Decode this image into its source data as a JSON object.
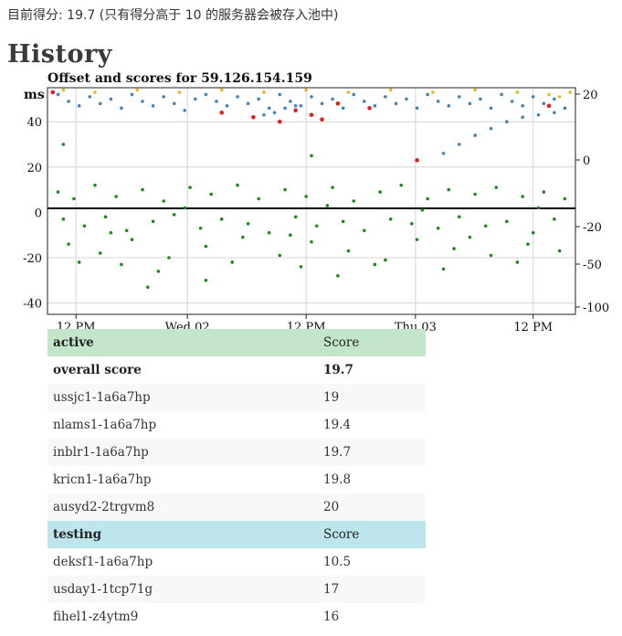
{
  "status_line": "目前得分: 19.7 (只有得分高于 10 的服务器会被存入池中)",
  "heading": "History",
  "chart_data": {
    "type": "scatter",
    "title": "Offset and scores for 59.126.154.159",
    "left_axis": {
      "unit_label": "ms",
      "ticks": [
        {
          "label": "40",
          "value": 40
        },
        {
          "label": "20",
          "value": 20
        },
        {
          "label": "0",
          "value": 0
        },
        {
          "label": "-20",
          "value": -20
        },
        {
          "label": "-40",
          "value": -40
        }
      ],
      "ylim": [
        -45,
        55
      ]
    },
    "right_axis": {
      "ticks": [
        {
          "label": "20",
          "value": 20
        },
        {
          "label": "0",
          "value": 0
        },
        {
          "label": "-20",
          "value": -20
        },
        {
          "label": "-50",
          "value": -50
        },
        {
          "label": "-100",
          "value": -100
        }
      ]
    },
    "x_axis": {
      "ticks": [
        "12 PM",
        "Wed 02",
        "12 PM",
        "Thu 03",
        "12 PM"
      ]
    },
    "series": [
      {
        "kind": "offset",
        "color": "#1e8a1e",
        "points": [
          [
            0.02,
            9
          ],
          [
            0.05,
            6
          ],
          [
            0.09,
            12
          ],
          [
            0.13,
            7
          ],
          [
            0.18,
            10
          ],
          [
            0.22,
            5
          ],
          [
            0.27,
            11
          ],
          [
            0.31,
            8
          ],
          [
            0.36,
            12
          ],
          [
            0.4,
            6
          ],
          [
            0.45,
            10
          ],
          [
            0.49,
            7
          ],
          [
            0.54,
            11
          ],
          [
            0.58,
            5
          ],
          [
            0.63,
            9
          ],
          [
            0.67,
            12
          ],
          [
            0.72,
            6
          ],
          [
            0.76,
            10
          ],
          [
            0.81,
            8
          ],
          [
            0.85,
            11
          ],
          [
            0.9,
            7
          ],
          [
            0.94,
            9
          ],
          [
            0.98,
            6
          ],
          [
            0.03,
            -3
          ],
          [
            0.07,
            -6
          ],
          [
            0.11,
            -2
          ],
          [
            0.15,
            -8
          ],
          [
            0.2,
            -4
          ],
          [
            0.24,
            -1
          ],
          [
            0.29,
            -7
          ],
          [
            0.33,
            -3
          ],
          [
            0.38,
            -5
          ],
          [
            0.42,
            -9
          ],
          [
            0.47,
            -2
          ],
          [
            0.51,
            -6
          ],
          [
            0.56,
            -4
          ],
          [
            0.6,
            -8
          ],
          [
            0.65,
            -3
          ],
          [
            0.69,
            -5
          ],
          [
            0.74,
            -7
          ],
          [
            0.78,
            -2
          ],
          [
            0.83,
            -6
          ],
          [
            0.87,
            -4
          ],
          [
            0.92,
            -9
          ],
          [
            0.96,
            -3
          ],
          [
            0.04,
            -14
          ],
          [
            0.1,
            -18
          ],
          [
            0.16,
            -12
          ],
          [
            0.23,
            -20
          ],
          [
            0.3,
            -15
          ],
          [
            0.37,
            -11
          ],
          [
            0.44,
            -19
          ],
          [
            0.5,
            -13
          ],
          [
            0.57,
            -17
          ],
          [
            0.64,
            -21
          ],
          [
            0.7,
            -12
          ],
          [
            0.77,
            -16
          ],
          [
            0.84,
            -19
          ],
          [
            0.91,
            -14
          ],
          [
            0.97,
            -17
          ],
          [
            0.06,
            -22
          ],
          [
            0.14,
            -23
          ],
          [
            0.21,
            -26
          ],
          [
            0.35,
            -22
          ],
          [
            0.48,
            -24
          ],
          [
            0.62,
            -23
          ],
          [
            0.75,
            -25
          ],
          [
            0.89,
            -22
          ],
          [
            0.26,
            2
          ],
          [
            0.53,
            3
          ],
          [
            0.71,
            1
          ],
          [
            0.93,
            2
          ],
          [
            0.12,
            -9
          ],
          [
            0.46,
            -10
          ],
          [
            0.8,
            -11
          ],
          [
            0.3,
            -30
          ],
          [
            0.55,
            -28
          ],
          [
            0.19,
            -33
          ],
          [
            0.03,
            30
          ],
          [
            0.5,
            25
          ]
        ]
      },
      {
        "kind": "score",
        "color": "#4682b4",
        "points": [
          [
            0.02,
            52
          ],
          [
            0.04,
            49
          ],
          [
            0.06,
            47
          ],
          [
            0.08,
            51
          ],
          [
            0.1,
            48
          ],
          [
            0.12,
            50
          ],
          [
            0.14,
            46
          ],
          [
            0.16,
            52
          ],
          [
            0.18,
            49
          ],
          [
            0.2,
            47
          ],
          [
            0.22,
            51
          ],
          [
            0.24,
            48
          ],
          [
            0.26,
            45
          ],
          [
            0.28,
            50
          ],
          [
            0.3,
            52
          ],
          [
            0.32,
            49
          ],
          [
            0.34,
            47
          ],
          [
            0.36,
            51
          ],
          [
            0.38,
            48
          ],
          [
            0.4,
            50
          ],
          [
            0.42,
            46
          ],
          [
            0.44,
            52
          ],
          [
            0.46,
            49
          ],
          [
            0.48,
            47
          ],
          [
            0.5,
            51
          ],
          [
            0.52,
            48
          ],
          [
            0.54,
            50
          ],
          [
            0.56,
            46
          ],
          [
            0.58,
            52
          ],
          [
            0.6,
            49
          ],
          [
            0.62,
            47
          ],
          [
            0.64,
            51
          ],
          [
            0.66,
            48
          ],
          [
            0.68,
            50
          ],
          [
            0.7,
            46
          ],
          [
            0.72,
            52
          ],
          [
            0.74,
            49
          ],
          [
            0.76,
            47
          ],
          [
            0.78,
            51
          ],
          [
            0.8,
            48
          ],
          [
            0.82,
            50
          ],
          [
            0.84,
            46
          ],
          [
            0.86,
            52
          ],
          [
            0.88,
            49
          ],
          [
            0.9,
            47
          ],
          [
            0.92,
            51
          ],
          [
            0.94,
            48
          ],
          [
            0.96,
            50
          ],
          [
            0.98,
            46
          ],
          [
            0.41,
            43
          ],
          [
            0.43,
            44
          ],
          [
            0.45,
            46
          ],
          [
            0.47,
            47
          ],
          [
            0.75,
            26
          ],
          [
            0.78,
            30
          ],
          [
            0.81,
            34
          ],
          [
            0.84,
            37
          ],
          [
            0.87,
            40
          ],
          [
            0.9,
            42
          ],
          [
            0.93,
            43
          ],
          [
            0.96,
            44
          ]
        ]
      },
      {
        "kind": "monitor",
        "color": "#e6b830",
        "points": [
          [
            0.03,
            54
          ],
          [
            0.09,
            53
          ],
          [
            0.17,
            54
          ],
          [
            0.25,
            53
          ],
          [
            0.33,
            54
          ],
          [
            0.41,
            53
          ],
          [
            0.49,
            54
          ],
          [
            0.57,
            53
          ],
          [
            0.65,
            54
          ],
          [
            0.73,
            53
          ],
          [
            0.81,
            54
          ],
          [
            0.89,
            53
          ],
          [
            0.95,
            52
          ],
          [
            0.97,
            51
          ],
          [
            0.99,
            53
          ]
        ]
      },
      {
        "kind": "error",
        "color": "#e02020",
        "points": [
          [
            0.01,
            53
          ],
          [
            0.33,
            44
          ],
          [
            0.39,
            42
          ],
          [
            0.44,
            40
          ],
          [
            0.47,
            45
          ],
          [
            0.5,
            43
          ],
          [
            0.52,
            41
          ],
          [
            0.55,
            48
          ],
          [
            0.61,
            46
          ],
          [
            0.7,
            23
          ],
          [
            0.95,
            47
          ]
        ]
      }
    ]
  },
  "tables": [
    {
      "header": {
        "name": "active",
        "score": "Score"
      },
      "rows": [
        {
          "name": "overall score",
          "score": "19.7",
          "bold": true
        },
        {
          "name": "ussjc1-1a6a7hp",
          "score": "19"
        },
        {
          "name": "nlams1-1a6a7hp",
          "score": "19.4"
        },
        {
          "name": "inblr1-1a6a7hp",
          "score": "19.7"
        },
        {
          "name": "kricn1-1a6a7hp",
          "score": "19.8"
        },
        {
          "name": "ausyd2-2trgvm8",
          "score": "20"
        }
      ]
    },
    {
      "header": {
        "name": "testing",
        "score": "Score"
      },
      "rows": [
        {
          "name": "deksf1-1a6a7hp",
          "score": "10.5"
        },
        {
          "name": "usday1-1tcp71g",
          "score": "17"
        },
        {
          "name": "fihel1-z4ytm9",
          "score": "16"
        }
      ]
    }
  ]
}
